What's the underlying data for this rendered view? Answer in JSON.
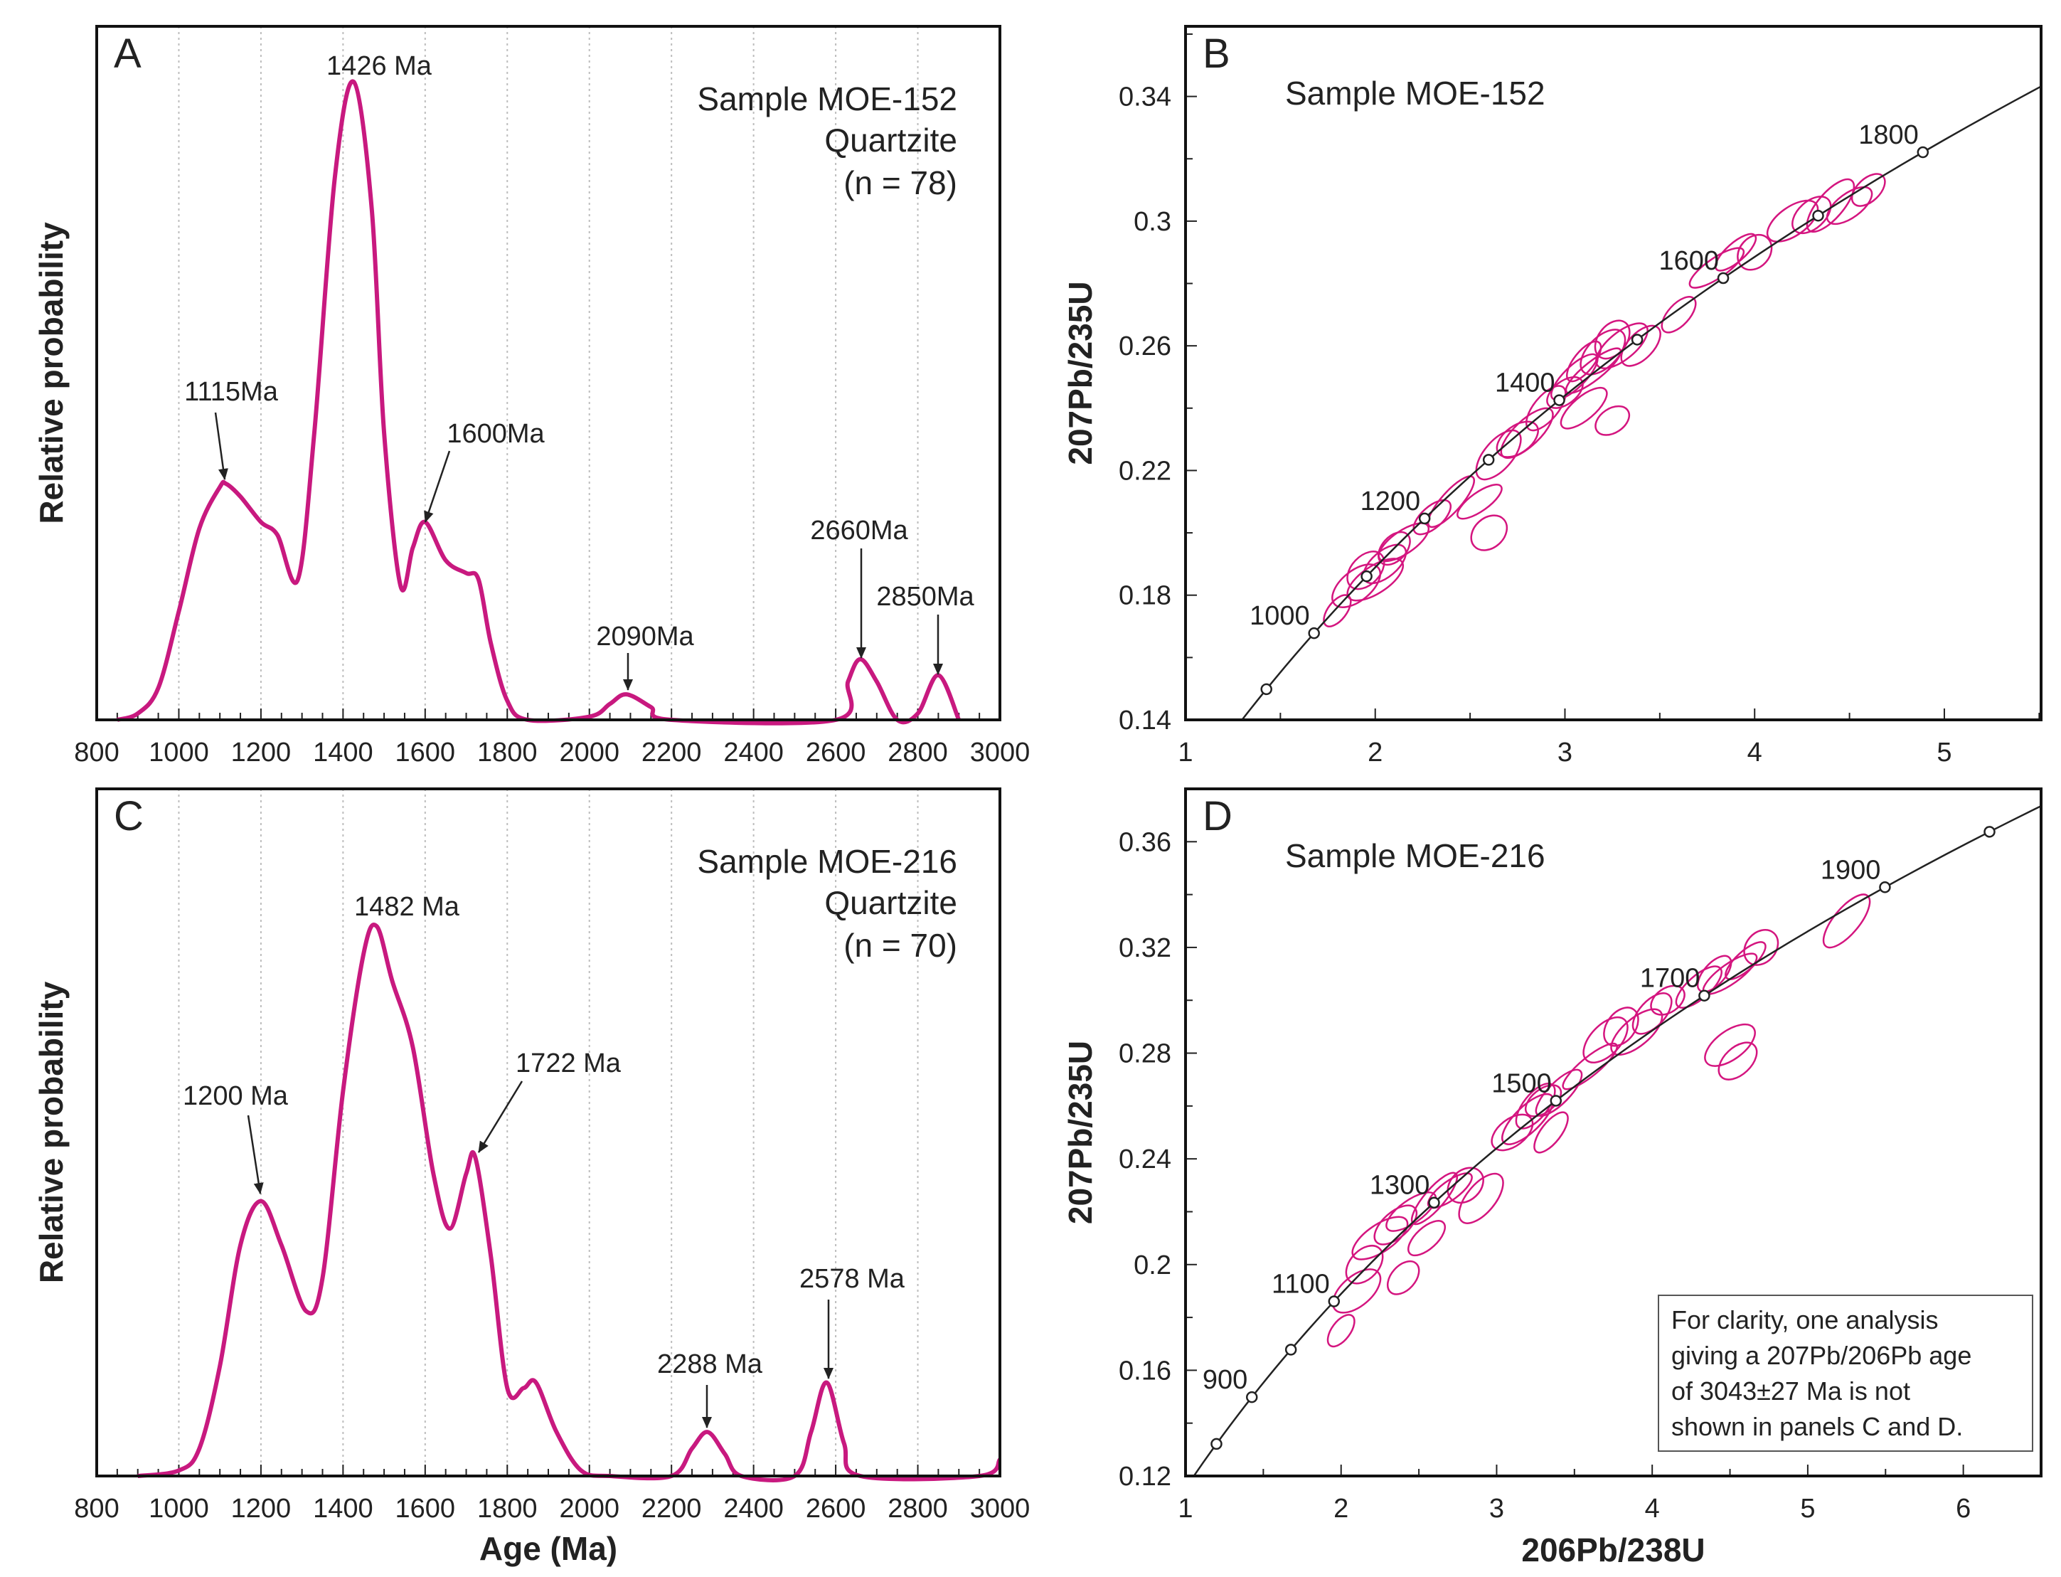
{
  "colors": {
    "curve": "#c8197f",
    "ellipse": "#d4157f",
    "concordia": "#222222",
    "grid": "#bdbdbd"
  },
  "chart_data": [
    {
      "type": "line",
      "panel": "A",
      "title": "Sample MOE-152",
      "subtitle": [
        "Quartzite",
        "(n = 78)"
      ],
      "xlabel": "",
      "ylabel": "Relative probability",
      "xlim": [
        800,
        3000
      ],
      "ylim": [
        0,
        1.087
      ],
      "xticks": [
        800,
        1000,
        1200,
        1400,
        1600,
        1800,
        2000,
        2200,
        2400,
        2600,
        2800,
        3000
      ],
      "grid": "vertical-dotted",
      "x": [
        850,
        900,
        950,
        1000,
        1050,
        1100,
        1115,
        1150,
        1200,
        1240,
        1290,
        1330,
        1380,
        1426,
        1470,
        1500,
        1540,
        1570,
        1600,
        1650,
        1700,
        1730,
        1760,
        1800,
        1850,
        2000,
        2050,
        2090,
        2150,
        2200,
        2600,
        2630,
        2660,
        2700,
        2750,
        2800,
        2850,
        2900
      ],
      "y": [
        0,
        0.01,
        0.05,
        0.17,
        0.3,
        0.365,
        0.37,
        0.35,
        0.31,
        0.29,
        0.22,
        0.45,
        0.85,
        1.0,
        0.8,
        0.45,
        0.21,
        0.27,
        0.31,
        0.25,
        0.23,
        0.22,
        0.12,
        0.03,
        0,
        0.005,
        0.025,
        0.04,
        0.02,
        0,
        0,
        0.06,
        0.095,
        0.06,
        0,
        0.01,
        0.07,
        0
      ],
      "annotations": [
        {
          "label": "1426 Ma",
          "age": 1426
        },
        {
          "label": "1115Ma",
          "age": 1115
        },
        {
          "label": "1600Ma",
          "age": 1600
        },
        {
          "label": "2090Ma",
          "age": 2090
        },
        {
          "label": "2660Ma",
          "age": 2660
        },
        {
          "label": "2850Ma",
          "age": 2850
        }
      ]
    },
    {
      "type": "scatter",
      "subtype": "concordia",
      "panel": "B",
      "title": "Sample MOE-152",
      "xlabel": "206Pb/238U",
      "ylabel": "207Pb/235U",
      "xlim": [
        1,
        5.51
      ],
      "ylim": [
        0.14,
        0.3625
      ],
      "xticks": [
        1,
        2,
        3,
        4,
        5
      ],
      "yticks": [
        0.14,
        0.18,
        0.22,
        0.26,
        0.3,
        0.34
      ],
      "concordia_marker_ages": [
        900,
        1000,
        1100,
        1200,
        1300,
        1400,
        1500,
        1600,
        1700,
        1800
      ],
      "concordia_labels": [
        1000,
        1200,
        1400,
        1600,
        1800
      ],
      "ellipses": [
        [
          1.8,
          0.175
        ],
        [
          1.9,
          0.183
        ],
        [
          1.95,
          0.188
        ],
        [
          2.0,
          0.185
        ],
        [
          2.05,
          0.19
        ],
        [
          2.1,
          0.195
        ],
        [
          2.15,
          0.197
        ],
        [
          2.3,
          0.205
        ],
        [
          2.4,
          0.21
        ],
        [
          2.55,
          0.21
        ],
        [
          2.6,
          0.2
        ],
        [
          2.65,
          0.225
        ],
        [
          2.75,
          0.23
        ],
        [
          2.8,
          0.232
        ],
        [
          2.9,
          0.24
        ],
        [
          3.0,
          0.245
        ],
        [
          3.05,
          0.25
        ],
        [
          3.1,
          0.255
        ],
        [
          3.15,
          0.252
        ],
        [
          3.2,
          0.258
        ],
        [
          3.25,
          0.262
        ],
        [
          3.3,
          0.26
        ],
        [
          3.4,
          0.26
        ],
        [
          3.25,
          0.236
        ],
        [
          3.1,
          0.24
        ],
        [
          3.6,
          0.27
        ],
        [
          3.8,
          0.285
        ],
        [
          3.9,
          0.29
        ],
        [
          4.0,
          0.29
        ],
        [
          4.2,
          0.3
        ],
        [
          4.3,
          0.302
        ],
        [
          4.4,
          0.305
        ],
        [
          4.5,
          0.305
        ],
        [
          4.6,
          0.31
        ]
      ]
    },
    {
      "type": "line",
      "panel": "C",
      "title": "Sample MOE-216",
      "subtitle": [
        "Quartzite",
        "(n = 70)"
      ],
      "xlabel": "Age (Ma)",
      "ylabel": "Relative probability",
      "xlim": [
        800,
        3000
      ],
      "ylim": [
        0,
        1.25
      ],
      "xticks": [
        800,
        1000,
        1200,
        1400,
        1600,
        1800,
        2000,
        2200,
        2400,
        2600,
        2800,
        3000
      ],
      "grid": "vertical-dotted",
      "x": [
        900,
        1000,
        1050,
        1100,
        1150,
        1200,
        1250,
        1310,
        1350,
        1400,
        1450,
        1482,
        1520,
        1570,
        1620,
        1660,
        1700,
        1722,
        1760,
        1800,
        1840,
        1870,
        1920,
        1980,
        2050,
        2200,
        2250,
        2288,
        2330,
        2370,
        2500,
        2540,
        2578,
        2620,
        2660,
        2950,
        3000
      ],
      "y": [
        0,
        0.01,
        0.05,
        0.2,
        0.42,
        0.5,
        0.42,
        0.3,
        0.36,
        0.7,
        0.95,
        1.0,
        0.9,
        0.78,
        0.55,
        0.45,
        0.55,
        0.58,
        0.4,
        0.16,
        0.16,
        0.17,
        0.08,
        0.01,
        0,
        0,
        0.05,
        0.08,
        0.04,
        0,
        0,
        0.08,
        0.17,
        0.06,
        0,
        0,
        0.03
      ],
      "annotations": [
        {
          "label": "1482 Ma",
          "age": 1482
        },
        {
          "label": "1200 Ma",
          "age": 1200
        },
        {
          "label": "1722 Ma",
          "age": 1722
        },
        {
          "label": "2288 Ma",
          "age": 2288
        },
        {
          "label": "2578 Ma",
          "age": 2578
        }
      ]
    },
    {
      "type": "scatter",
      "subtype": "concordia",
      "panel": "D",
      "title": "Sample MOE-216",
      "xlabel": "206Pb/238U",
      "ylabel": "207Pb/235U",
      "xlim": [
        1,
        6.5
      ],
      "ylim": [
        0.12,
        0.38
      ],
      "xticks": [
        1,
        2,
        3,
        4,
        5,
        6
      ],
      "yticks": [
        0.12,
        0.16,
        0.2,
        0.24,
        0.28,
        0.32,
        0.36
      ],
      "concordia_marker_ages": [
        800,
        900,
        1000,
        1100,
        1300,
        1500,
        1700,
        1900,
        2000
      ],
      "concordia_labels": [
        900,
        1100,
        1300,
        1500,
        1700,
        1900
      ],
      "ellipses": [
        [
          2.0,
          0.175
        ],
        [
          2.1,
          0.19
        ],
        [
          2.15,
          0.2
        ],
        [
          2.25,
          0.21
        ],
        [
          2.35,
          0.215
        ],
        [
          2.4,
          0.195
        ],
        [
          2.45,
          0.22
        ],
        [
          2.55,
          0.21
        ],
        [
          2.6,
          0.225
        ],
        [
          2.7,
          0.228
        ],
        [
          2.8,
          0.23
        ],
        [
          2.9,
          0.225
        ],
        [
          3.1,
          0.25
        ],
        [
          3.2,
          0.255
        ],
        [
          3.25,
          0.26
        ],
        [
          3.3,
          0.262
        ],
        [
          3.4,
          0.265
        ],
        [
          3.35,
          0.25
        ],
        [
          3.6,
          0.275
        ],
        [
          3.7,
          0.285
        ],
        [
          3.8,
          0.29
        ],
        [
          3.9,
          0.288
        ],
        [
          4.0,
          0.295
        ],
        [
          4.1,
          0.3
        ],
        [
          4.3,
          0.305
        ],
        [
          4.4,
          0.31
        ],
        [
          4.5,
          0.31
        ],
        [
          4.6,
          0.315
        ],
        [
          4.7,
          0.32
        ],
        [
          4.5,
          0.283
        ],
        [
          4.55,
          0.277
        ],
        [
          5.25,
          0.33
        ]
      ],
      "note": [
        "For clarity, one analysis",
        "giving a 207Pb/206Pb age",
        "of  3043±27 Ma is not",
        "shown  in panels C and D."
      ]
    }
  ]
}
